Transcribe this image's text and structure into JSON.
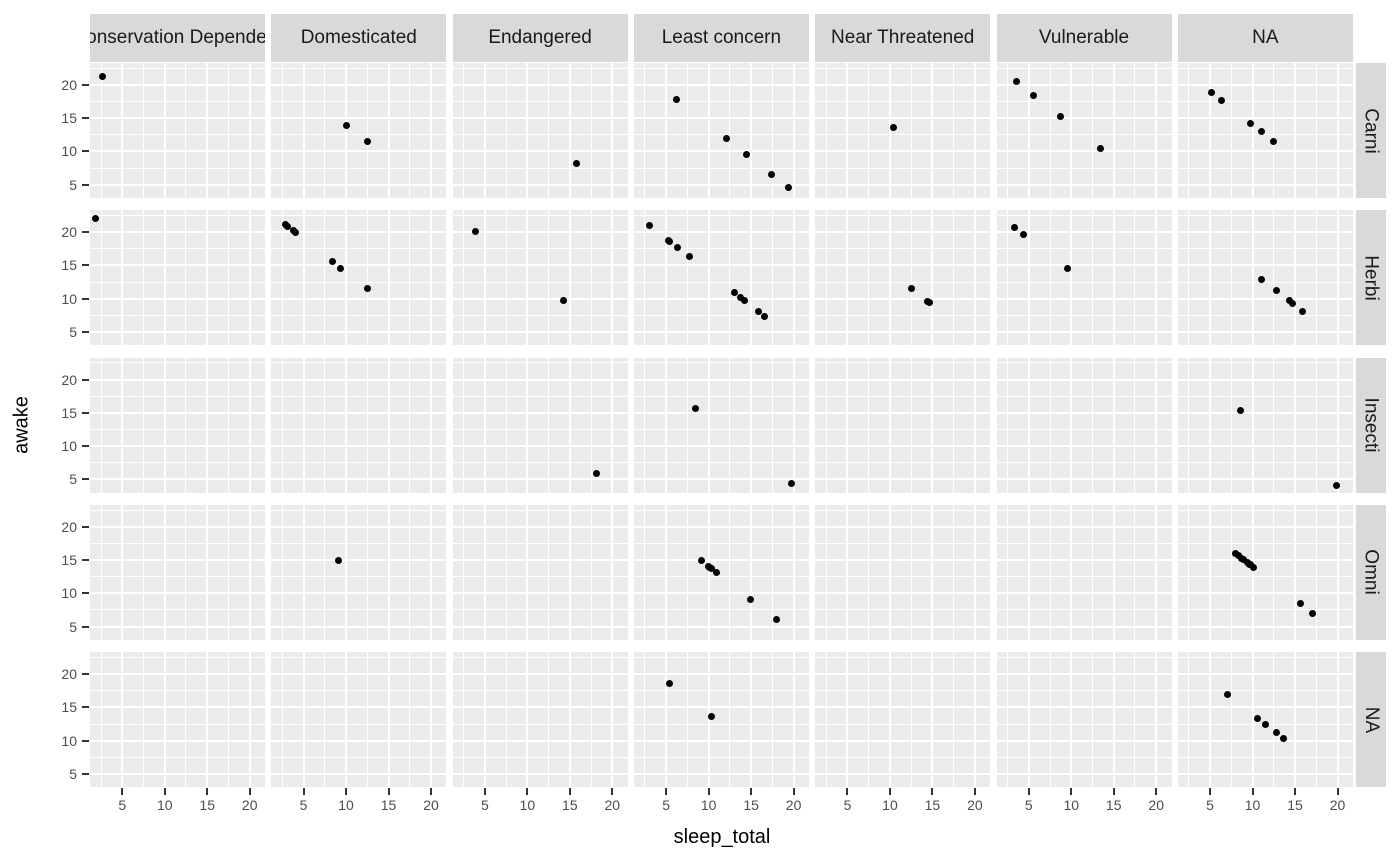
{
  "chart_data": {
    "type": "scatter",
    "title": "",
    "xlabel": "sleep_total",
    "ylabel": "awake",
    "point_color": "#000000",
    "facet": {
      "row_variable_values": [
        "Carni",
        "Herbi",
        "Insecti",
        "Omni",
        "NA"
      ],
      "col_variable_values": [
        "Conservation Dependent",
        "Domesticated",
        "Endangered",
        "Least concern",
        "Near Threatened",
        "Vulnerable",
        "NA"
      ]
    },
    "x": {
      "ticks": [
        5,
        10,
        15,
        20
      ],
      "range": [
        1.2,
        21.8
      ],
      "grid": true
    },
    "y": {
      "ticks": [
        20,
        15,
        10,
        5
      ],
      "range": [
        3.0,
        23.3
      ],
      "grid": true
    },
    "panels": [
      {
        "row": "Carni",
        "col": "Conservation Dependent",
        "points": [
          [
            2.7,
            21.3
          ]
        ]
      },
      {
        "row": "Carni",
        "col": "Domesticated",
        "points": [
          [
            10.1,
            13.9
          ],
          [
            12.5,
            11.5
          ]
        ]
      },
      {
        "row": "Carni",
        "col": "Endangered",
        "points": [
          [
            15.8,
            8.2
          ]
        ]
      },
      {
        "row": "Carni",
        "col": "Least concern",
        "points": [
          [
            6.2,
            17.8
          ],
          [
            12.1,
            11.9
          ],
          [
            14.5,
            9.5
          ],
          [
            17.4,
            6.6
          ],
          [
            19.4,
            4.6
          ]
        ]
      },
      {
        "row": "Carni",
        "col": "Near Threatened",
        "points": [
          [
            10.4,
            13.6
          ]
        ]
      },
      {
        "row": "Carni",
        "col": "Vulnerable",
        "points": [
          [
            3.5,
            20.5
          ],
          [
            5.6,
            18.4
          ],
          [
            8.7,
            15.3
          ],
          [
            13.5,
            10.5
          ]
        ]
      },
      {
        "row": "Carni",
        "col": "NA",
        "points": [
          [
            5.2,
            18.8
          ],
          [
            6.3,
            17.7
          ],
          [
            9.8,
            14.2
          ],
          [
            11.0,
            13.0
          ],
          [
            12.5,
            11.5
          ]
        ]
      },
      {
        "row": "Herbi",
        "col": "Conservation Dependent",
        "points": [
          [
            1.9,
            22.1
          ]
        ]
      },
      {
        "row": "Herbi",
        "col": "Domesticated",
        "points": [
          [
            2.9,
            21.1
          ],
          [
            3.1,
            20.9
          ],
          [
            3.8,
            20.2
          ],
          [
            4.0,
            20.0
          ],
          [
            8.4,
            15.6
          ],
          [
            9.4,
            14.6
          ],
          [
            12.5,
            11.5
          ]
        ]
      },
      {
        "row": "Herbi",
        "col": "Endangered",
        "points": [
          [
            3.9,
            20.1
          ],
          [
            14.3,
            9.7
          ]
        ]
      },
      {
        "row": "Herbi",
        "col": "Least concern",
        "points": [
          [
            3.0,
            21.0
          ],
          [
            5.3,
            18.7
          ],
          [
            5.4,
            18.6
          ],
          [
            6.3,
            17.7
          ],
          [
            7.7,
            16.3
          ],
          [
            13.0,
            11.0
          ],
          [
            13.8,
            10.2
          ],
          [
            14.2,
            9.8
          ],
          [
            15.9,
            8.1
          ],
          [
            16.6,
            7.4
          ]
        ]
      },
      {
        "row": "Herbi",
        "col": "Near Threatened",
        "points": [
          [
            12.5,
            11.5
          ],
          [
            14.4,
            9.6
          ],
          [
            14.6,
            9.4
          ]
        ]
      },
      {
        "row": "Herbi",
        "col": "Vulnerable",
        "points": [
          [
            3.3,
            20.7
          ],
          [
            4.4,
            19.6
          ],
          [
            9.5,
            14.5
          ]
        ]
      },
      {
        "row": "Herbi",
        "col": "NA",
        "points": [
          [
            11.1,
            12.9
          ],
          [
            12.8,
            11.2
          ],
          [
            14.3,
            9.7
          ],
          [
            14.7,
            9.3
          ],
          [
            15.9,
            8.1
          ]
        ]
      },
      {
        "row": "Insecti",
        "col": "Conservation Dependent",
        "points": []
      },
      {
        "row": "Insecti",
        "col": "Domesticated",
        "points": []
      },
      {
        "row": "Insecti",
        "col": "Endangered",
        "points": [
          [
            18.1,
            5.9
          ]
        ]
      },
      {
        "row": "Insecti",
        "col": "Least concern",
        "points": [
          [
            8.4,
            15.6
          ],
          [
            19.7,
            4.3
          ]
        ]
      },
      {
        "row": "Insecti",
        "col": "Near Threatened",
        "points": []
      },
      {
        "row": "Insecti",
        "col": "Vulnerable",
        "points": []
      },
      {
        "row": "Insecti",
        "col": "NA",
        "points": [
          [
            8.6,
            15.4
          ],
          [
            19.9,
            4.1
          ]
        ]
      },
      {
        "row": "Omni",
        "col": "Conservation Dependent",
        "points": []
      },
      {
        "row": "Omni",
        "col": "Domesticated",
        "points": [
          [
            9.1,
            14.9
          ]
        ]
      },
      {
        "row": "Omni",
        "col": "Endangered",
        "points": []
      },
      {
        "row": "Omni",
        "col": "Least concern",
        "points": [
          [
            9.1,
            14.9
          ],
          [
            10.0,
            14.0
          ],
          [
            10.1,
            13.9
          ],
          [
            10.3,
            13.7
          ],
          [
            10.9,
            13.1
          ],
          [
            14.9,
            9.1
          ],
          [
            18.0,
            6.0
          ]
        ]
      },
      {
        "row": "Omni",
        "col": "Near Threatened",
        "points": []
      },
      {
        "row": "Omni",
        "col": "Vulnerable",
        "points": []
      },
      {
        "row": "Omni",
        "col": "NA",
        "points": [
          [
            8.0,
            16.0
          ],
          [
            8.3,
            15.7
          ],
          [
            8.7,
            15.3
          ],
          [
            8.9,
            15.1
          ],
          [
            9.4,
            14.6
          ],
          [
            9.6,
            14.4
          ],
          [
            9.7,
            14.3
          ],
          [
            10.1,
            13.9
          ],
          [
            15.6,
            8.4
          ],
          [
            17.0,
            7.0
          ]
        ]
      },
      {
        "row": "NA",
        "col": "Conservation Dependent",
        "points": []
      },
      {
        "row": "NA",
        "col": "Domesticated",
        "points": []
      },
      {
        "row": "NA",
        "col": "Endangered",
        "points": []
      },
      {
        "row": "NA",
        "col": "Least concern",
        "points": [
          [
            5.4,
            18.6
          ],
          [
            10.3,
            13.7
          ]
        ]
      },
      {
        "row": "NA",
        "col": "Near Threatened",
        "points": []
      },
      {
        "row": "NA",
        "col": "Vulnerable",
        "points": []
      },
      {
        "row": "NA",
        "col": "NA",
        "points": [
          [
            7.0,
            17.0
          ],
          [
            10.6,
            13.4
          ],
          [
            11.5,
            12.5
          ],
          [
            12.8,
            11.2
          ],
          [
            13.7,
            10.3
          ]
        ]
      }
    ]
  },
  "style": {
    "panel_background": "#ebebeb",
    "strip_background": "#d9d9d9",
    "gridline_color": "#ffffff",
    "axis_text_color": "#4d4d4d",
    "strip_text_color": "#1a1a1a",
    "point_color": "#000000"
  }
}
